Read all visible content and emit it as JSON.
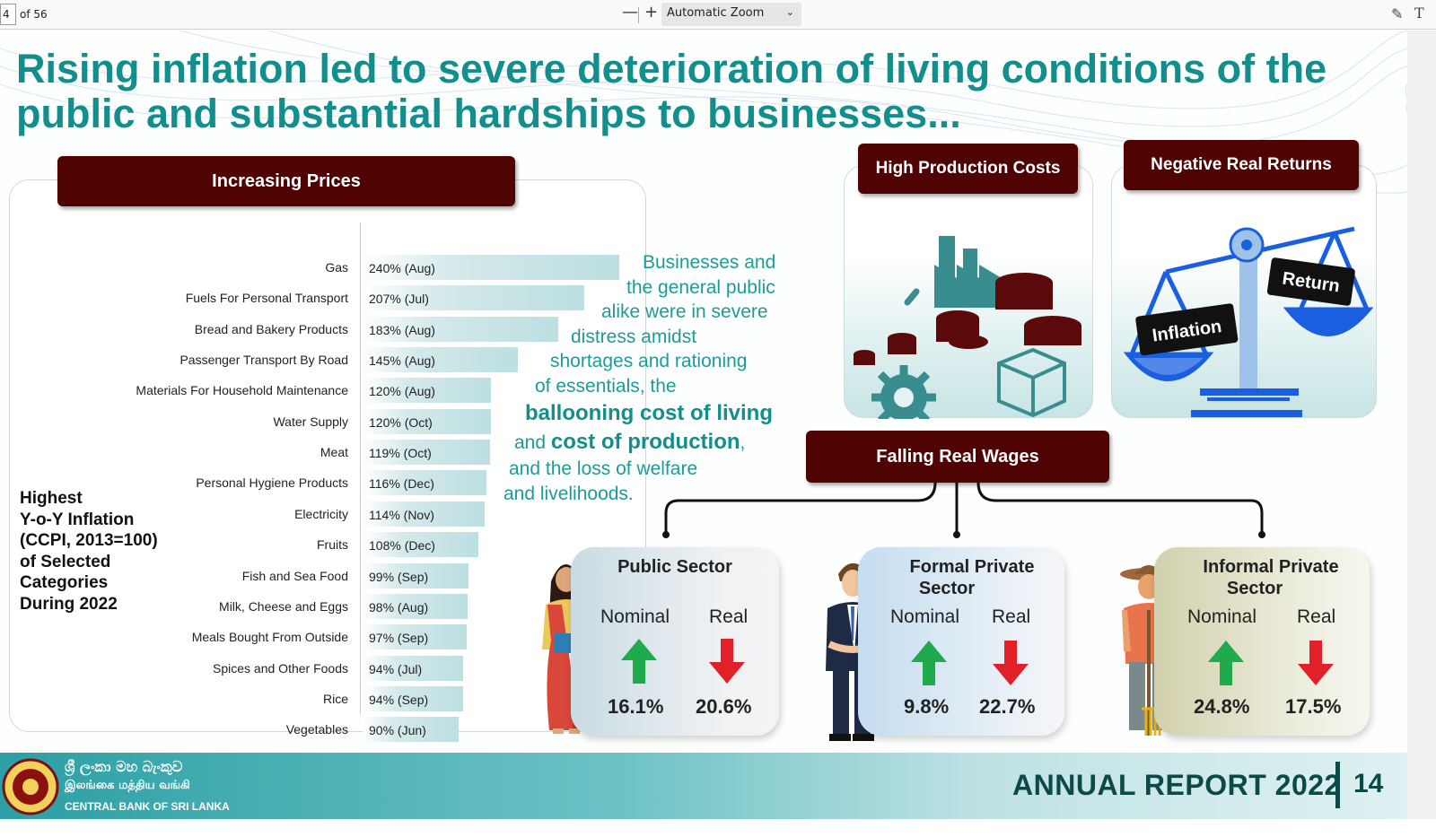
{
  "viewer": {
    "page_current": "4",
    "page_total": "of 56",
    "zoom_out": "—",
    "zoom_in": "+",
    "zoom_value": "Automatic Zoom",
    "icons": [
      "draw-icon",
      "text-icon",
      "chevron-down-icon"
    ]
  },
  "slide": {
    "title": "Rising inflation led to severe deterioration of living conditions of the public and substantial hardships to businesses...",
    "prices_heading": "Increasing Prices",
    "side_note": [
      "Highest",
      "Y-o-Y Inflation",
      "(CCPI, 2013=100)",
      "of Selected",
      "Categories",
      "During 2022"
    ],
    "middle_text": {
      "l1": "Businesses and",
      "l2": "the general public",
      "l3": "alike were in severe",
      "l4": "distress amidst",
      "l5": "shortages and rationing",
      "l6": "of essentials, the",
      "emph1": "ballooning cost of living",
      "and": "and ",
      "emph2": "cost of production",
      "comma": ",",
      "l9": "and the loss of welfare",
      "l10": "and livelihoods."
    },
    "production_heading": "High Production Costs",
    "returns_heading": "Negative Real Returns",
    "scale_left_label": "Inflation",
    "scale_right_label": "Return",
    "wages_heading": "Falling Real Wages",
    "nominal_label": "Nominal",
    "real_label": "Real",
    "cards": [
      {
        "title_l1": "Public Sector",
        "title_l2": "",
        "nominal": "16.1%",
        "real": "20.6%"
      },
      {
        "title_l1": "Formal Private",
        "title_l2": "Sector",
        "nominal": "9.8%",
        "real": "22.7%"
      },
      {
        "title_l1": "Informal Private",
        "title_l2": "Sector",
        "nominal": "24.8%",
        "real": "17.5%"
      }
    ],
    "colors": {
      "teal": "#128f8c",
      "maroon": "#4f0303",
      "arrow_up": "#1faa4b",
      "arrow_down": "#e2202a",
      "blue": "#1a5fe0"
    }
  },
  "chart_data": {
    "type": "bar",
    "orientation": "horizontal",
    "categories": [
      "Gas",
      "Fuels For Personal Transport",
      "Bread and Bakery Products",
      "Passenger Transport By Road",
      "Materials For Household Maintenance",
      "Water Supply",
      "Meat",
      "Personal Hygiene Products",
      "Electricity",
      "Fruits",
      "Fish and Sea Food",
      "Milk, Cheese and Eggs",
      "Meals Bought From Outside",
      "Spices and Other Foods",
      "Rice",
      "Vegetables"
    ],
    "values": [
      240,
      207,
      183,
      145,
      120,
      120,
      119,
      116,
      114,
      108,
      99,
      98,
      97,
      94,
      94,
      90
    ],
    "labels": [
      "240% (Aug)",
      "207% (Jul)",
      "183% (Aug)",
      "145% (Aug)",
      "120% (Aug)",
      "120% (Oct)",
      "119% (Oct)",
      "116% (Dec)",
      "114% (Nov)",
      "108% (Dec)",
      "99% (Sep)",
      "98% (Aug)",
      "97% (Sep)",
      "94% (Jul)",
      "94% (Sep)",
      "90% (Jun)"
    ]
  },
  "footer": {
    "bank_sinhala": "ශ්‍රී ලංකා මහ බැංකුව",
    "bank_tamil": "இலங்கை மத்திய வங்கி",
    "bank_english": "CENTRAL BANK OF SRI LANKA",
    "report": "ANNUAL REPORT 2022",
    "page": "14"
  }
}
